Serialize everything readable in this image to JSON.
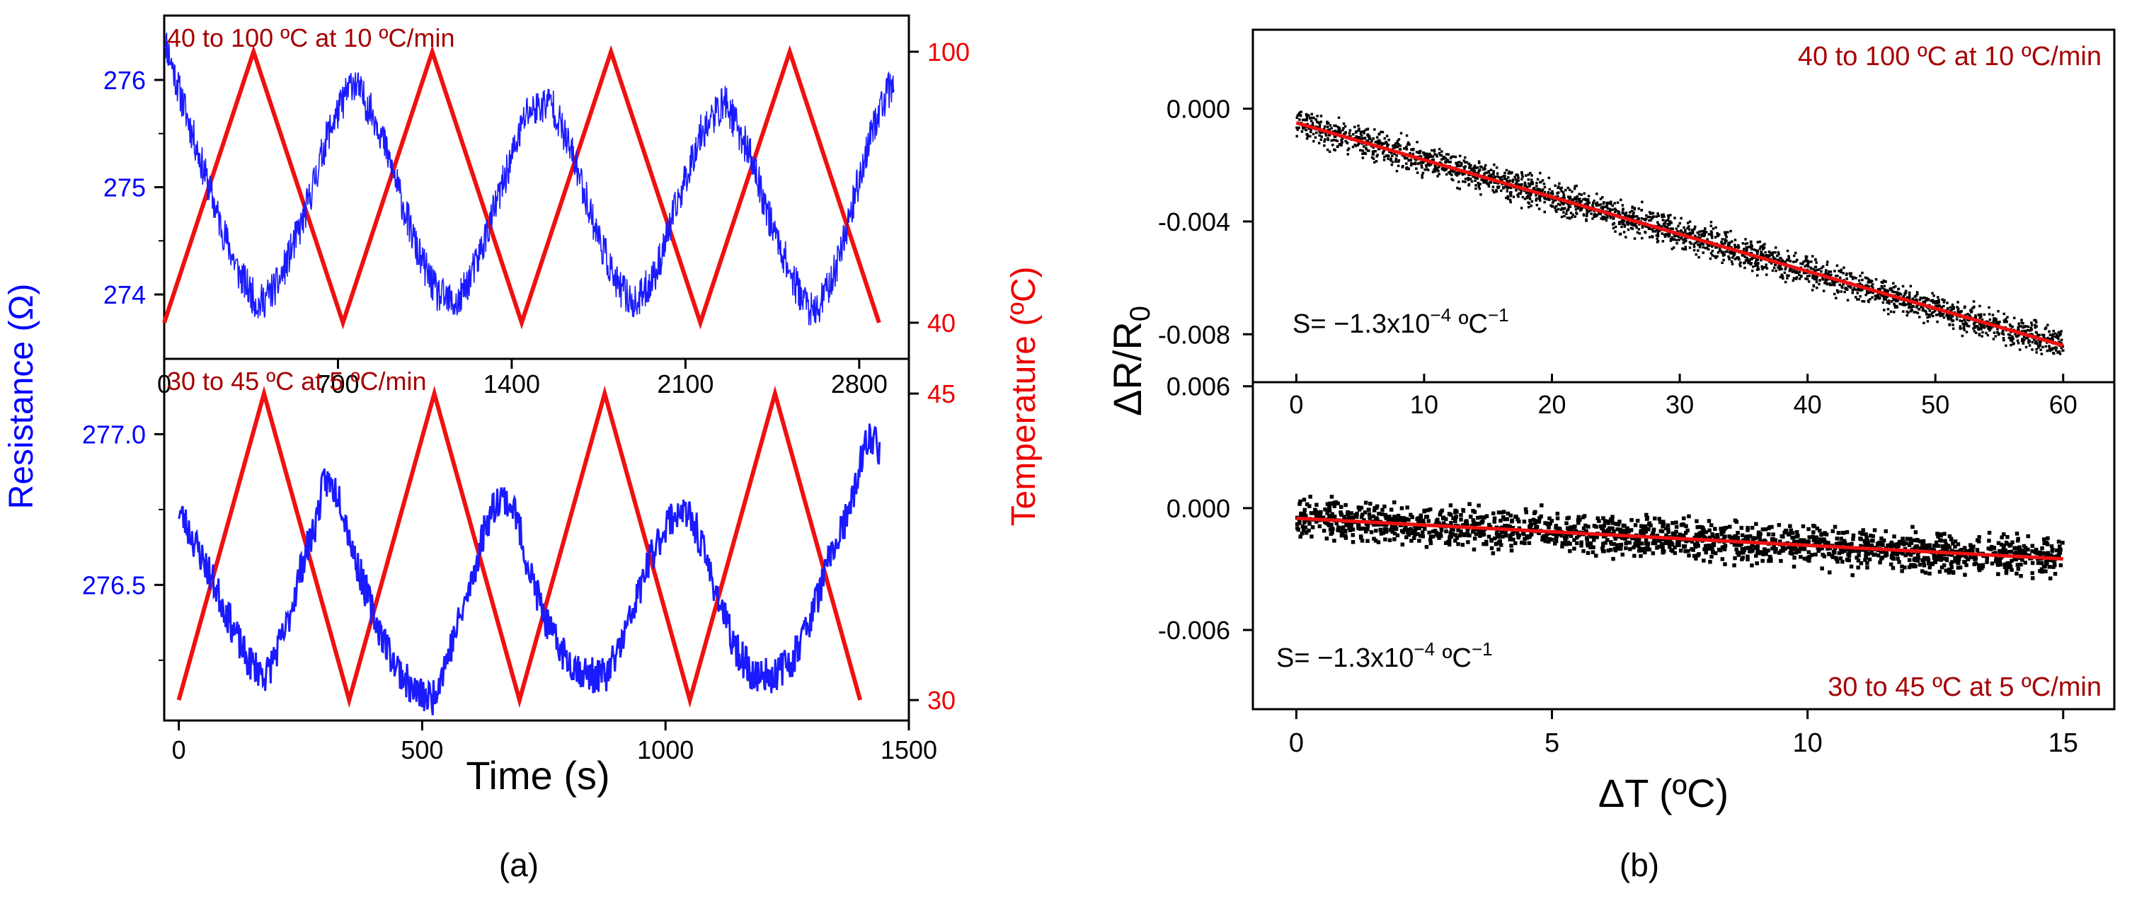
{
  "panel_labels": [
    "(a)",
    "(b)"
  ],
  "colors": {
    "resistance": "#1a1aff",
    "temperature": "#ee1111",
    "scatter": "#000000",
    "fit": "#ee1111",
    "annotation": "#a50000",
    "resistance_axis_text": "#0000ff",
    "temperature_axis_text": "#ee0000"
  },
  "chart_data": [
    {
      "id": "a-top",
      "type": "line",
      "annotation": "40 to 100 ºC at 10 ºC/min",
      "xlim": [
        0,
        3000
      ],
      "xticks": [
        0,
        700,
        1400,
        2100,
        2800
      ],
      "ylabel_left": "Resistance (Ω)",
      "ylim_left": [
        273.4,
        276.6
      ],
      "yticks_left": [
        274,
        275,
        276
      ],
      "ylabel_right": "Temperature (ºC)",
      "ylim_right": [
        32,
        108
      ],
      "yticks_right": [
        40,
        100
      ],
      "series": [
        {
          "axis": "right",
          "color": "#ee1111",
          "x": [
            0,
            360,
            720,
            1080,
            1440,
            1800,
            2160,
            2520,
            2880
          ],
          "y": [
            40,
            100,
            40,
            100,
            40,
            100,
            40,
            100,
            40
          ]
        },
        {
          "axis": "left",
          "color": "#1a1aff",
          "x": [
            0,
            60,
            140,
            220,
            300,
            380,
            460,
            560,
            660,
            760,
            860,
            940,
            1020,
            1100,
            1180,
            1260,
            1360,
            1460,
            1560,
            1660,
            1740,
            1820,
            1900,
            1980,
            2060,
            2160,
            2260,
            2360,
            2440,
            2540,
            2620,
            2700,
            2780,
            2860,
            2940
          ],
          "y": [
            276.4,
            275.9,
            275.3,
            274.7,
            274.2,
            273.9,
            274.1,
            274.7,
            275.5,
            276.0,
            275.6,
            275.0,
            274.4,
            274.0,
            273.9,
            274.3,
            275.0,
            275.7,
            275.8,
            275.2,
            274.6,
            274.1,
            273.9,
            274.2,
            274.8,
            275.5,
            275.8,
            275.3,
            274.7,
            274.1,
            273.8,
            274.2,
            274.9,
            275.6,
            276.0
          ]
        }
      ]
    },
    {
      "id": "a-bottom",
      "type": "line",
      "annotation": "30 to 45 ºC at 5 ºC/min",
      "xlabel": "Time (s)",
      "xlim": [
        -30,
        1500
      ],
      "xticks": [
        0,
        500,
        1000,
        1500
      ],
      "ylabel_left": "Resistance (Ω)",
      "ylim_left": [
        276.05,
        277.25
      ],
      "yticks_left": [
        276.5,
        277.0
      ],
      "ylabel_right": "Temperature (ºC)",
      "ylim_right": [
        29.0,
        46.7
      ],
      "yticks_right": [
        30,
        45
      ],
      "series": [
        {
          "axis": "right",
          "color": "#ee1111",
          "x": [
            0,
            175,
            350,
            525,
            700,
            875,
            1050,
            1225,
            1400
          ],
          "y": [
            30,
            45,
            30,
            45,
            30,
            45,
            30,
            45,
            30
          ]
        },
        {
          "axis": "left",
          "color": "#1a1aff",
          "x": [
            0,
            30,
            60,
            100,
            140,
            180,
            220,
            250,
            280,
            300,
            330,
            360,
            400,
            440,
            480,
            520,
            560,
            600,
            630,
            660,
            690,
            720,
            760,
            800,
            840,
            880,
            920,
            960,
            1000,
            1030,
            1060,
            1100,
            1140,
            1180,
            1220,
            1260,
            1300,
            1340,
            1380,
            1400,
            1420,
            1440
          ],
          "y": [
            276.75,
            276.65,
            276.55,
            276.4,
            276.25,
            276.2,
            276.35,
            276.55,
            276.7,
            276.85,
            276.8,
            276.6,
            276.4,
            276.25,
            276.15,
            276.12,
            276.3,
            276.5,
            276.7,
            276.8,
            276.75,
            276.55,
            276.35,
            276.25,
            276.2,
            276.2,
            276.35,
            276.55,
            276.7,
            276.75,
            276.7,
            276.5,
            276.3,
            276.2,
            276.2,
            276.25,
            276.4,
            276.6,
            276.75,
            276.9,
            277.0,
            276.95
          ]
        }
      ]
    },
    {
      "id": "b-top",
      "type": "scatter",
      "annotation": "40 to 100 ºC at 10 ºC/min",
      "sensitivity_label": "S= −1.3x10",
      "sensitivity_exp": "−4",
      "sensitivity_unit": " ºC",
      "sensitivity_unit_exp": "−1",
      "ylabel": "ΔR/R",
      "ylabel_sub": "0",
      "xlim": [
        -3.4,
        64
      ],
      "xticks": [
        0,
        10,
        20,
        30,
        40,
        50,
        60
      ],
      "ylim": [
        -0.0097,
        0.0028
      ],
      "yticks": [
        0.0,
        -0.004,
        -0.008
      ],
      "ytick_labels": [
        "0.000",
        "-0.004",
        "-0.008"
      ],
      "fit": {
        "x": [
          0,
          60
        ],
        "y": [
          -0.0005,
          -0.0084
        ]
      },
      "scatter_band": {
        "x_range": [
          0,
          60
        ],
        "intercept": -0.0005,
        "slope": -0.0001317,
        "spread": 0.0008,
        "points": 2600
      }
    },
    {
      "id": "b-bottom",
      "type": "scatter",
      "annotation": "30 to 45 ºC at 5 ºC/min",
      "sensitivity_label": "S= −1.3x10",
      "sensitivity_exp": "−4",
      "sensitivity_unit": " ºC",
      "sensitivity_unit_exp": "−1",
      "xlabel": "ΔT (ºC)",
      "xlim": [
        -0.85,
        16
      ],
      "xticks": [
        0,
        5,
        10,
        15
      ],
      "ylim": [
        -0.0099,
        0.0062
      ],
      "yticks": [
        0.006,
        0.0,
        -0.006
      ],
      "ytick_labels": [
        "0.006",
        "0.000",
        "-0.006"
      ],
      "fit": {
        "x": [
          0,
          15
        ],
        "y": [
          -0.0005,
          -0.0025
        ]
      },
      "scatter_band": {
        "x_range": [
          0,
          15
        ],
        "intercept": -0.0005,
        "slope": -0.000133,
        "spread": 0.0014,
        "points": 1800
      }
    }
  ]
}
